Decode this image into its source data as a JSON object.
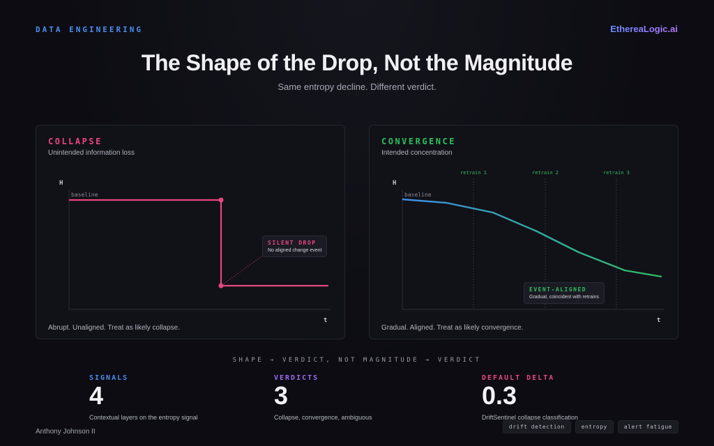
{
  "header": {
    "kicker": "DATA ENGINEERING",
    "brand": "EthereaLogic.ai",
    "title": "The Shape of the Drop, Not the Magnitude",
    "subtitle": "Same entropy decline. Different verdict."
  },
  "panels": {
    "collapse": {
      "heading": "COLLAPSE",
      "subheading": "Unintended information loss",
      "footer": "Abrupt. Unaligned. Treat as likely collapse.",
      "y_axis_label": "H",
      "x_axis_label": "t",
      "baseline_label": "baseline",
      "callout_title": "SILENT DROP",
      "callout_text": "No aligned change event",
      "color": "#e8477f"
    },
    "convergence": {
      "heading": "CONVERGENCE",
      "subheading": "Intended concentration",
      "footer": "Gradual. Aligned. Treat as likely convergence.",
      "y_axis_label": "H",
      "x_axis_label": "t",
      "baseline_label": "baseline",
      "retrain_labels": [
        "retrain 1",
        "retrain 2",
        "retrain 3"
      ],
      "callout_title": "EVENT-ALIGNED",
      "callout_text": "Gradual, coincident with retrains",
      "color": "#2fbf5f",
      "line_start_color": "#3d8fe8"
    }
  },
  "mid_kicker": "SHAPE → VERDICT, NOT MAGNITUDE → VERDICT",
  "stats": [
    {
      "label": "SIGNALS",
      "value": "4",
      "desc": "Contextual layers on the entropy signal",
      "color": "#4d8ef0"
    },
    {
      "label": "VERDICTS",
      "value": "3",
      "desc": "Collapse, convergence, ambiguous",
      "color": "#a168f0"
    },
    {
      "label": "DEFAULT DELTA",
      "value": "0.3",
      "desc": "DriftSentinel collapse classification",
      "color": "#e8477f"
    }
  ],
  "footer": {
    "author": "Anthony Johnson II",
    "tags": [
      "drift detection",
      "entropy",
      "alert fatigue"
    ]
  }
}
